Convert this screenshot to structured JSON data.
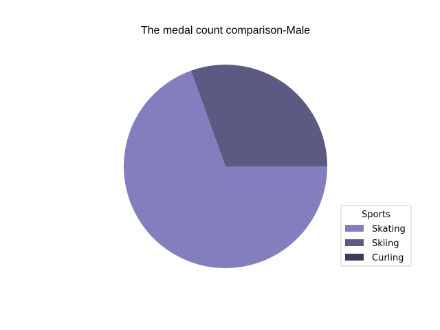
{
  "chart_data": {
    "type": "pie",
    "title": "The medal count comparison-Male",
    "categories": [
      "Skating",
      "Skiing",
      "Curling"
    ],
    "values": [
      69.5,
      30.5,
      0
    ],
    "colors": [
      "#837fbf",
      "#5c5a82",
      "#3d3c56"
    ],
    "start_angle_deg": 0,
    "direction": "clockwise-from-east",
    "legend": {
      "title": "Sports",
      "placement": "lower-right"
    }
  }
}
